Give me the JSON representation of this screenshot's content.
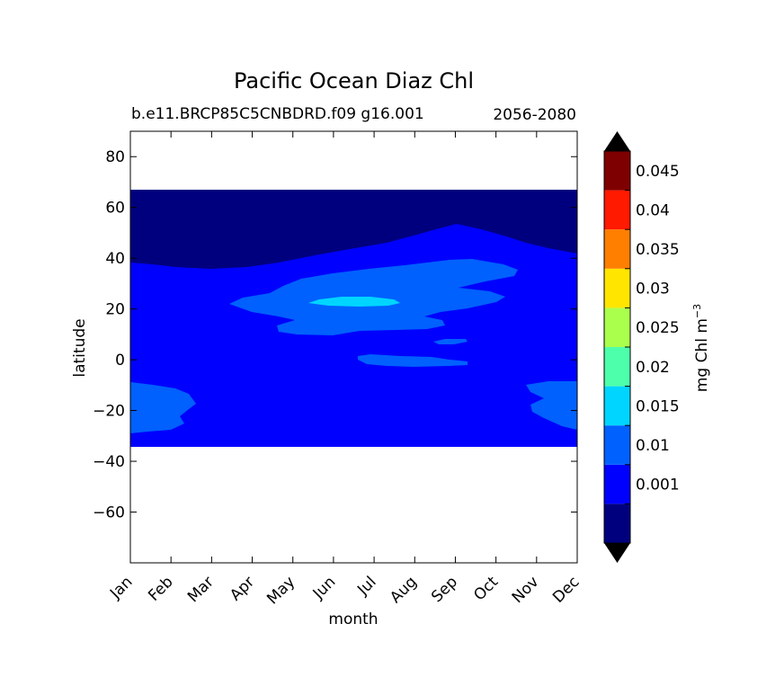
{
  "chart_data": {
    "type": "contour",
    "title": "Pacific Ocean Diaz Chl",
    "subtitle_left": "b.e11.BRCP85C5CNBDRD.f09 g16.001",
    "subtitle_right": "2056-2080",
    "xlabel": "month",
    "ylabel": "latitude",
    "x_ticks": [
      "Jan",
      "Feb",
      "Mar",
      "Apr",
      "May",
      "Jun",
      "Jul",
      "Aug",
      "Sep",
      "Oct",
      "Nov",
      "Dec"
    ],
    "y_ticks": [
      80,
      60,
      40,
      20,
      0,
      -20,
      -40,
      -60
    ],
    "ylim": [
      -80,
      90
    ],
    "data_lat_range": [
      -34,
      67
    ],
    "colorbar": {
      "label": "mg Chl m",
      "label_superscript": "−3",
      "tick_labels": [
        "0.001",
        "0.01",
        "0.015",
        "0.02",
        "0.025",
        "0.03",
        "0.035",
        "0.04",
        "0.045"
      ],
      "colors": [
        "#00007f",
        "#0000ff",
        "#0061ff",
        "#00d5ff",
        "#4dffaa",
        "#aaff4d",
        "#ffe500",
        "#ff7f00",
        "#ff1a00",
        "#7f0000"
      ],
      "extend_colors": {
        "under": "#000000",
        "over": "#000000"
      }
    },
    "regions": [
      {
        "level": "<0.001",
        "color": "#00007f",
        "desc": "north band above ~40N, rising to ~53N in Sep"
      },
      {
        "level": "0.001-0.01",
        "color": "#0000ff",
        "desc": "background from -34 to ~40N"
      },
      {
        "level": "0.01-0.015",
        "color": "#0061ff",
        "desc": "NH subtropical band Apr-Oct ~10-40N; SH Jan-Feb and Nov-Dec ~-10 to -28; equatorial Jul-Sep ~0"
      },
      {
        "level": "0.015-0.02",
        "color": "#00d5ff",
        "desc": "Jun-Jul near 23N"
      }
    ]
  }
}
